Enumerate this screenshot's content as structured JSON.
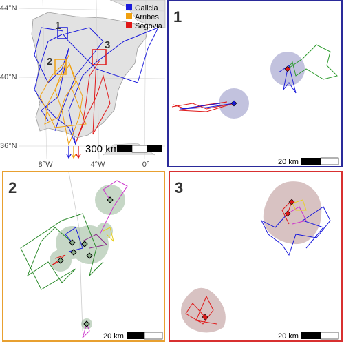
{
  "overview": {
    "legend": [
      {
        "label": "Galicia",
        "color": "#1a1adb"
      },
      {
        "label": "Arribes",
        "color": "#f0a010"
      },
      {
        "label": "Segovia",
        "color": "#e01818"
      }
    ],
    "lat_labels": [
      "44°N",
      "40°N",
      "36°N"
    ],
    "lon_labels": [
      "8°W",
      "4°W",
      "0°"
    ],
    "scale_label": "300 km",
    "box_labels": [
      "1",
      "2",
      "3"
    ]
  },
  "panels": [
    {
      "label": "1",
      "scale_label": "20 km",
      "border": "#2a2a9a"
    },
    {
      "label": "2",
      "scale_label": "20 km",
      "border": "#e8a030"
    },
    {
      "label": "3",
      "scale_label": "20 km",
      "border": "#d83030"
    }
  ]
}
